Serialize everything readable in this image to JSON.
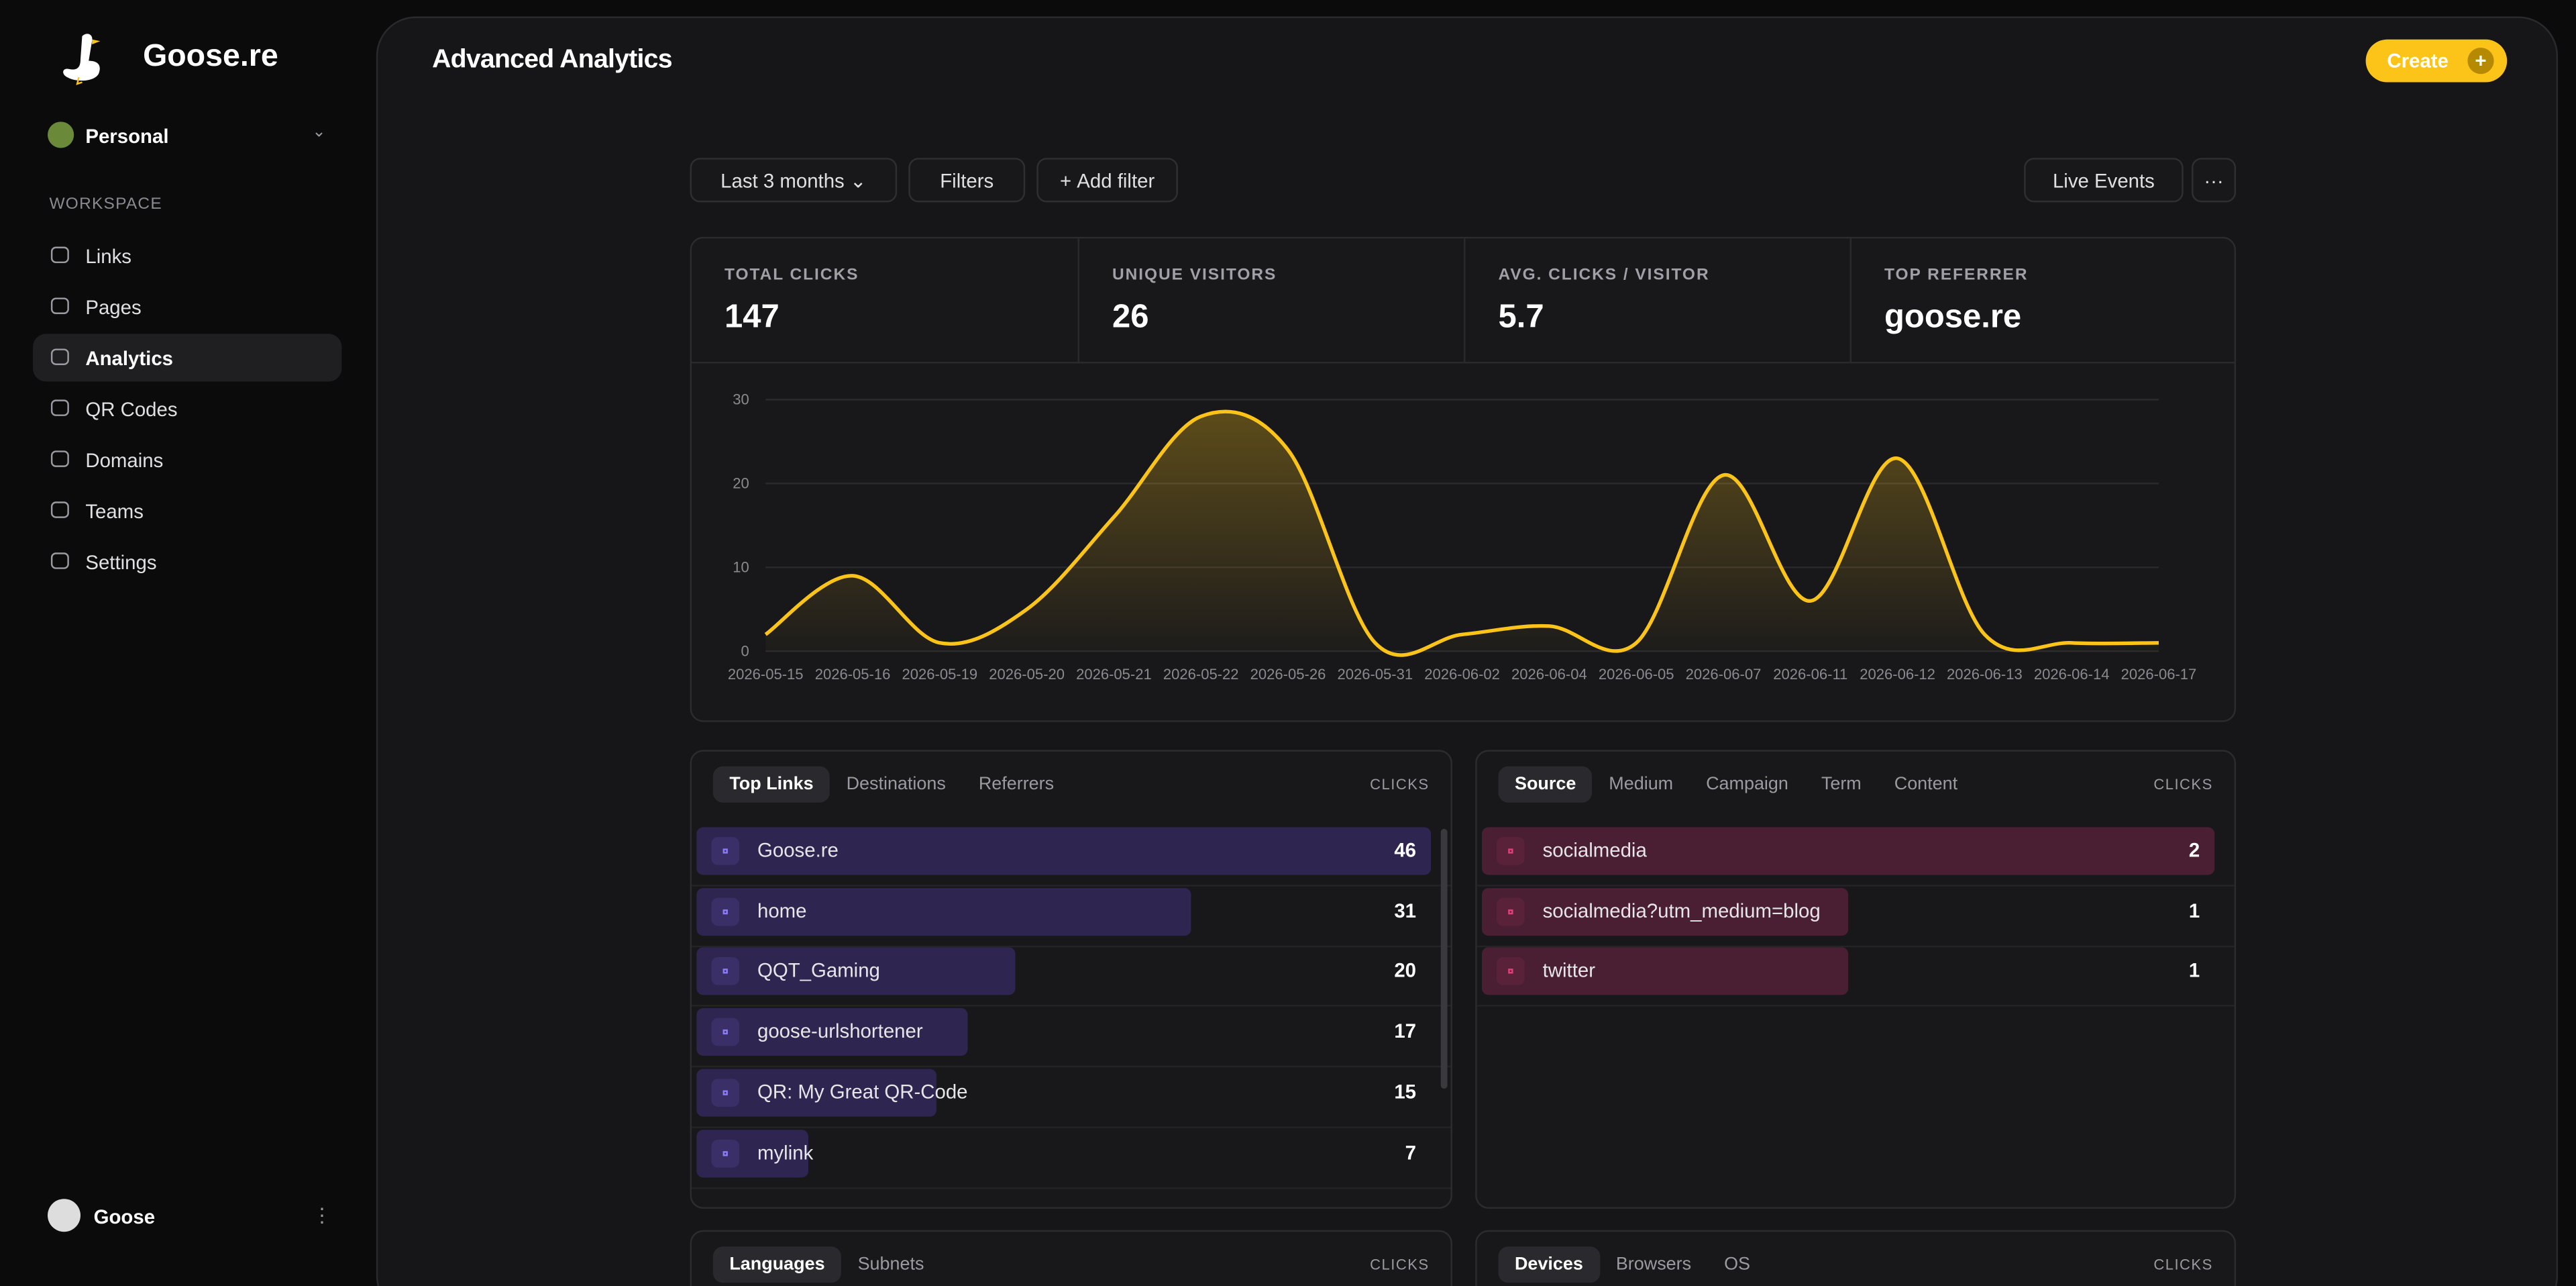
{
  "sidebar": {
    "brand": "Goose.re",
    "workspace_switcher": "Personal",
    "section_label": "WORKSPACE",
    "nav": [
      "Links",
      "Pages",
      "Analytics",
      "QR Codes",
      "Domains",
      "Teams",
      "Settings"
    ],
    "active_nav": 2,
    "user": "Goose"
  },
  "header": {
    "title": "Advanced Analytics",
    "create_button": "Create"
  },
  "toolbar": {
    "date_range": "Last 3 months",
    "filters": "Filters",
    "add_filter": "Add filter",
    "live_events": "Live Events"
  },
  "stats": [
    {
      "label": "TOTAL CLICKS",
      "value": 147
    },
    {
      "label": "UNIQUE VISITORS",
      "value": 26
    },
    {
      "label": "AVG. CLICKS / VISITOR",
      "value": 5.7
    },
    {
      "label": "TOP REFERRER",
      "value": "goose.re"
    }
  ],
  "chart_data": {
    "type": "area",
    "x": [
      "2026-05-15",
      "2026-05-16",
      "2026-05-19",
      "2026-05-20",
      "2026-05-21",
      "2026-05-22",
      "2026-05-26",
      "2026-05-31",
      "2026-06-02",
      "2026-06-04",
      "2026-06-05",
      "2026-06-07",
      "2026-06-11",
      "2026-06-12",
      "2026-06-13",
      "2026-06-14",
      "2026-06-17"
    ],
    "values": [
      2,
      9,
      1,
      5,
      16,
      28,
      24,
      1,
      2,
      3,
      1,
      21,
      6,
      23,
      2,
      1,
      1
    ],
    "ylim": [
      0,
      30
    ],
    "yticks": [
      0,
      10,
      20,
      30
    ],
    "grid": true,
    "color": "#fcc419"
  },
  "panels": [
    {
      "tabs": [
        "Top Links",
        "Destinations",
        "Referrers"
      ],
      "active_tab": 0,
      "metric_label": "CLICKS",
      "rows": [
        {
          "label": "Goose.re",
          "value": 46
        },
        {
          "label": "home",
          "value": 31
        },
        {
          "label": "QQT_Gaming",
          "value": 20
        },
        {
          "label": "goose-urlshortener",
          "value": 17
        },
        {
          "label": "QR: My Great QR-Code",
          "value": 15
        },
        {
          "label": "mylink",
          "value": 7
        }
      ]
    },
    {
      "tabs": [
        "Source",
        "Medium",
        "Campaign",
        "Term",
        "Content"
      ],
      "active_tab": 0,
      "metric_label": "CLICKS",
      "rows": [
        {
          "label": "socialmedia",
          "value": 2
        },
        {
          "label": "socialmedia?utm_medium=blog",
          "value": 1
        },
        {
          "label": "twitter",
          "value": 1
        }
      ]
    },
    {
      "tabs": [
        "Languages",
        "Subnets"
      ],
      "active_tab": 0,
      "metric_label": "CLICKS",
      "rows": []
    },
    {
      "tabs": [
        "Devices",
        "Browsers",
        "OS"
      ],
      "active_tab": 0,
      "metric_label": "CLICKS",
      "rows": []
    }
  ]
}
